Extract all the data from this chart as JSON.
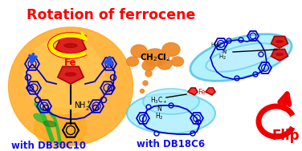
{
  "title": "Rotation of ferrocene",
  "label_left": "with DB30C10",
  "label_mid": "with DB18C6",
  "label_ch2cl2": "CH$_2$Cl$_2$",
  "label_flip": "Flip",
  "title_color": "#ff0000",
  "label_color": "#1111ee",
  "flip_color": "#ee0000",
  "fe_color": "#ee0000",
  "crown_color": "#0000cc",
  "bg_left_color": "#ffaa22",
  "bg_cyan_color": "#88eeff",
  "bg_cloud_color": "#ee8822",
  "white": "#ffffff",
  "green1": "#33bb33",
  "green2": "#228822",
  "yellow_arrow": "#ffee00",
  "red_pent": "#dd2222"
}
